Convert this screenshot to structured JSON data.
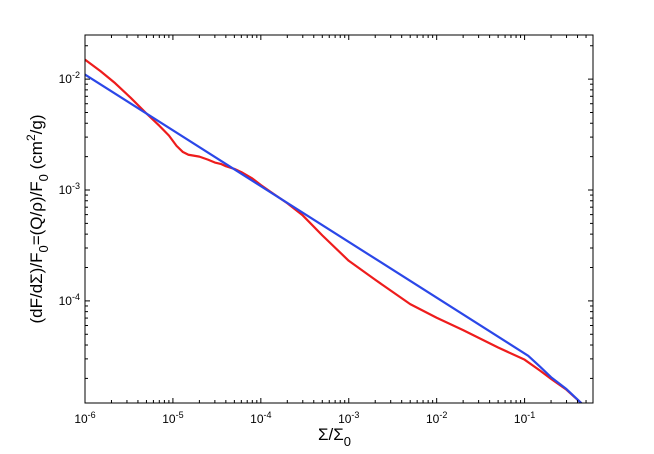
{
  "chart_data": {
    "type": "line",
    "title": "",
    "xlabel": "Σ/Σ_0",
    "ylabel": "(dF/dΣ)/F_0=(Q/ρ)/F_0 (cm^2/g)",
    "x_scale": "log",
    "y_scale": "log",
    "xlim": [
      1e-06,
      0.6
    ],
    "ylim": [
      1.2e-05,
      0.025
    ],
    "grid": false,
    "legend": "none",
    "x_ticks": [
      {
        "value": 1e-06,
        "base": "10",
        "exp": "-6"
      },
      {
        "value": 1e-05,
        "base": "10",
        "exp": "-5"
      },
      {
        "value": 0.0001,
        "base": "10",
        "exp": "-4"
      },
      {
        "value": 0.001,
        "base": "10",
        "exp": "-3"
      },
      {
        "value": 0.01,
        "base": "10",
        "exp": "-2"
      },
      {
        "value": 0.1,
        "base": "10",
        "exp": "-1"
      }
    ],
    "y_ticks": [
      {
        "value": 0.0001,
        "base": "10",
        "exp": "-4"
      },
      {
        "value": 0.001,
        "base": "10",
        "exp": "-3"
      },
      {
        "value": 0.01,
        "base": "10",
        "exp": "-2"
      }
    ],
    "series": [
      {
        "color": "#ee1c1c",
        "x": [
          1e-06,
          1.5e-06,
          2.2e-06,
          3.3e-06,
          5e-06,
          7e-06,
          9e-06,
          1.1e-05,
          1.3e-05,
          1.5e-05,
          2e-05,
          2.5e-05,
          3e-05,
          3.5e-05,
          4e-05,
          5e-05,
          6e-05,
          8e-05,
          0.0001,
          0.00013,
          0.0002,
          0.0003,
          0.0005,
          0.001,
          0.002,
          0.005,
          0.01,
          0.02,
          0.05,
          0.1,
          0.15,
          0.2,
          0.3,
          0.45
        ],
        "y": [
          0.015,
          0.0118,
          0.0092,
          0.0068,
          0.0049,
          0.0038,
          0.0031,
          0.0025,
          0.0022,
          0.00208,
          0.002,
          0.00188,
          0.00177,
          0.00172,
          0.00164,
          0.00155,
          0.00145,
          0.00127,
          0.00111,
          0.00096,
          0.00076,
          0.00059,
          0.00039,
          0.00023,
          0.000155,
          9.35e-05,
          7.05e-05,
          5.45e-05,
          3.8e-05,
          2.95e-05,
          2.35e-05,
          1.98e-05,
          1.58e-05,
          1.18e-05
        ]
      },
      {
        "color": "#2b47e8",
        "x": [
          1e-06,
          0.11,
          0.15,
          0.2,
          0.3,
          0.45
        ],
        "y": [
          0.011,
          3.2e-05,
          2.55e-05,
          2.05e-05,
          1.6e-05,
          1.18e-05
        ]
      }
    ]
  }
}
